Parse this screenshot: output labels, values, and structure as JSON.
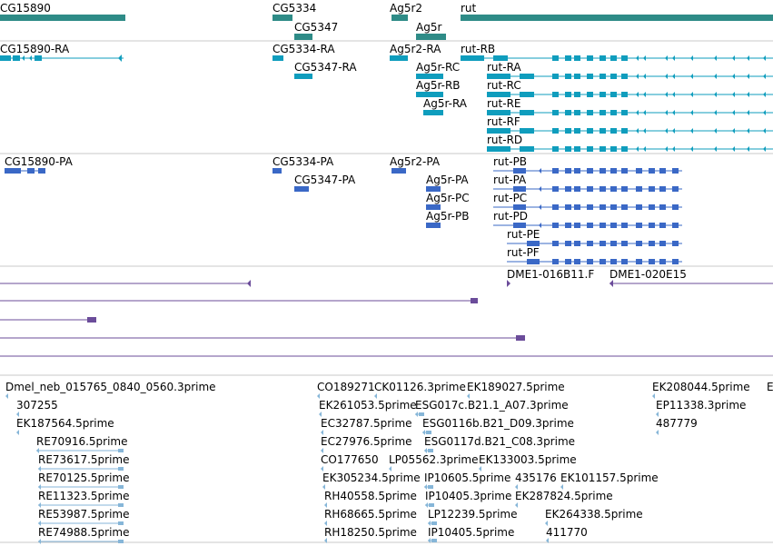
{
  "colors": {
    "gene": "#2e8b87",
    "transcript": "#0f9dbd",
    "protein": "#3a68c6",
    "clone": "#6b4c9a",
    "est": "#86b6d8",
    "divider": "#c8c8c8"
  },
  "tracks": [
    {
      "name": "genes",
      "labels": [
        {
          "id": "g-cg15890",
          "text": "CG15890"
        },
        {
          "id": "g-cg5334",
          "text": "CG5334"
        },
        {
          "id": "g-cg5347",
          "text": "CG5347"
        },
        {
          "id": "g-ag5r2",
          "text": "Ag5r2"
        },
        {
          "id": "g-ag5r",
          "text": "Ag5r"
        },
        {
          "id": "g-rut",
          "text": "rut"
        }
      ]
    },
    {
      "name": "transcripts",
      "labels": [
        {
          "id": "t-cg15890-ra",
          "text": "CG15890-RA"
        },
        {
          "id": "t-cg5334-ra",
          "text": "CG5334-RA"
        },
        {
          "id": "t-cg5347-ra",
          "text": "CG5347-RA"
        },
        {
          "id": "t-ag5r2-ra",
          "text": "Ag5r2-RA"
        },
        {
          "id": "t-ag5r-rc",
          "text": "Ag5r-RC"
        },
        {
          "id": "t-ag5r-rb",
          "text": "Ag5r-RB"
        },
        {
          "id": "t-ag5r-ra",
          "text": "Ag5r-RA"
        },
        {
          "id": "t-rut-rb",
          "text": "rut-RB"
        },
        {
          "id": "t-rut-ra",
          "text": "rut-RA"
        },
        {
          "id": "t-rut-rc",
          "text": "rut-RC"
        },
        {
          "id": "t-rut-re",
          "text": "rut-RE"
        },
        {
          "id": "t-rut-rf",
          "text": "rut-RF"
        },
        {
          "id": "t-rut-rd",
          "text": "rut-RD"
        }
      ]
    },
    {
      "name": "proteins",
      "labels": [
        {
          "id": "p-cg15890-pa",
          "text": "CG15890-PA"
        },
        {
          "id": "p-cg5334-pa",
          "text": "CG5334-PA"
        },
        {
          "id": "p-cg5347-pa",
          "text": "CG5347-PA"
        },
        {
          "id": "p-ag5r2-pa",
          "text": "Ag5r2-PA"
        },
        {
          "id": "p-ag5r-pa",
          "text": "Ag5r-PA"
        },
        {
          "id": "p-ag5r-pc",
          "text": "Ag5r-PC"
        },
        {
          "id": "p-ag5r-pb",
          "text": "Ag5r-PB"
        },
        {
          "id": "p-rut-pb",
          "text": "rut-PB"
        },
        {
          "id": "p-rut-pa",
          "text": "rut-PA"
        },
        {
          "id": "p-rut-pc",
          "text": "rut-PC"
        },
        {
          "id": "p-rut-pd",
          "text": "rut-PD"
        },
        {
          "id": "p-rut-pe",
          "text": "rut-PE"
        },
        {
          "id": "p-rut-pf",
          "text": "rut-PF"
        }
      ]
    },
    {
      "name": "clones",
      "labels": [
        {
          "id": "c-dme1-016b11",
          "text": "DME1-016B11.F"
        },
        {
          "id": "c-dme1-020e15",
          "text": "DME1-020E15"
        }
      ]
    },
    {
      "name": "ests",
      "labels": [
        {
          "id": "e-dmel-neb",
          "text": "Dmel_neb_015765_0840_0560.3prime"
        },
        {
          "id": "e-307255",
          "text": "307255"
        },
        {
          "id": "e-ek187564",
          "text": "EK187564.5prime"
        },
        {
          "id": "e-re70916",
          "text": "RE70916.5prime"
        },
        {
          "id": "e-re73617",
          "text": "RE73617.5prime"
        },
        {
          "id": "e-re70125",
          "text": "RE70125.5prime"
        },
        {
          "id": "e-re11323",
          "text": "RE11323.5prime"
        },
        {
          "id": "e-re53987",
          "text": "RE53987.5prime"
        },
        {
          "id": "e-re74988",
          "text": "RE74988.5prime"
        },
        {
          "id": "e-co189271",
          "text": "CO189271"
        },
        {
          "id": "e-ck01126",
          "text": "CK01126.3prime"
        },
        {
          "id": "e-ek189027",
          "text": "EK189027.5prime"
        },
        {
          "id": "e-ek261053",
          "text": "EK261053.5prime"
        },
        {
          "id": "e-esg017c",
          "text": "ESG017c.B21.1_A07.3prime"
        },
        {
          "id": "e-ec32787",
          "text": "EC32787.5prime"
        },
        {
          "id": "e-esg0116b",
          "text": "ESG0116b.B21_D09.3prime"
        },
        {
          "id": "e-ec27976",
          "text": "EC27976.5prime"
        },
        {
          "id": "e-esg0117d",
          "text": "ESG0117d.B21_C08.3prime"
        },
        {
          "id": "e-co177650",
          "text": "CO177650"
        },
        {
          "id": "e-lp05562",
          "text": "LP05562.3prime"
        },
        {
          "id": "e-ek133003",
          "text": "EK133003.5prime"
        },
        {
          "id": "e-ek305234",
          "text": "EK305234.5prime"
        },
        {
          "id": "e-ip10605",
          "text": "IP10605.5prime"
        },
        {
          "id": "e-435176",
          "text": "435176"
        },
        {
          "id": "e-ek101157",
          "text": "EK101157.5prime"
        },
        {
          "id": "e-rh40558",
          "text": "RH40558.5prime"
        },
        {
          "id": "e-ip10405-3",
          "text": "IP10405.3prime"
        },
        {
          "id": "e-ek287824",
          "text": "EK287824.5prime"
        },
        {
          "id": "e-rh68665",
          "text": "RH68665.5prime"
        },
        {
          "id": "e-lp12239",
          "text": "LP12239.5prime"
        },
        {
          "id": "e-ek264338",
          "text": "EK264338.5prime"
        },
        {
          "id": "e-rh18250",
          "text": "RH18250.5prime"
        },
        {
          "id": "e-ip10405-5",
          "text": "IP10405.5prime"
        },
        {
          "id": "e-411770",
          "text": "411770"
        },
        {
          "id": "e-ek208044",
          "text": "EK208044.5prime"
        },
        {
          "id": "e-ep11338",
          "text": "EP11338.3prime"
        },
        {
          "id": "e-487779",
          "text": "487779"
        },
        {
          "id": "e-edge",
          "text": "E"
        }
      ]
    }
  ]
}
